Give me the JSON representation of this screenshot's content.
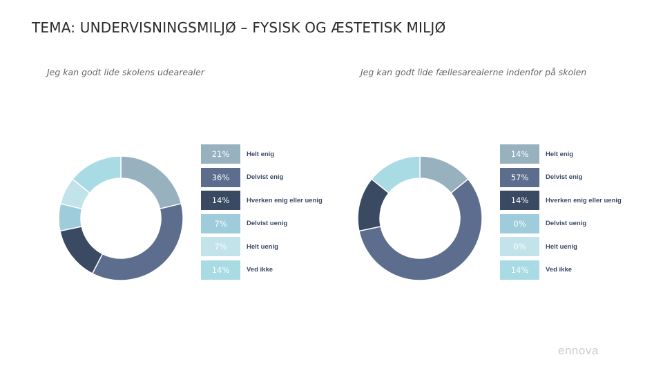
{
  "page": {
    "title": "TEMA: UNDERVISNINGSMILJØ – FYSISK OG ÆSTETISK MILJØ",
    "brand": "ennova"
  },
  "colors": [
    "#97b1bf",
    "#5c6d8d",
    "#3a4a62",
    "#9fccda",
    "#c2e3ea",
    "#a9dbe4"
  ],
  "chart_data": [
    {
      "type": "pie",
      "donut": true,
      "title": "Jeg kan godt lide skolens udearealer",
      "categories": [
        "Helt enig",
        "Delvist enig",
        "Hverken enig eller uenig",
        "Delvist uenig",
        "Helt uenig",
        "Ved ikke"
      ],
      "values": [
        21,
        36,
        14,
        7,
        7,
        14
      ],
      "labels": [
        "21%",
        "36%",
        "14%",
        "7%",
        "7%",
        "14%"
      ]
    },
    {
      "type": "pie",
      "donut": true,
      "title": "Jeg kan godt lide fællesarealerne indenfor på skolen",
      "categories": [
        "Helt enig",
        "Delvist enig",
        "Hverken enig eller uenig",
        "Delvist uenig",
        "Helt uenig",
        "Ved ikke"
      ],
      "values": [
        14,
        57,
        14,
        0,
        0,
        14
      ],
      "labels": [
        "14%",
        "57%",
        "14%",
        "0%",
        "0%",
        "14%"
      ]
    }
  ]
}
